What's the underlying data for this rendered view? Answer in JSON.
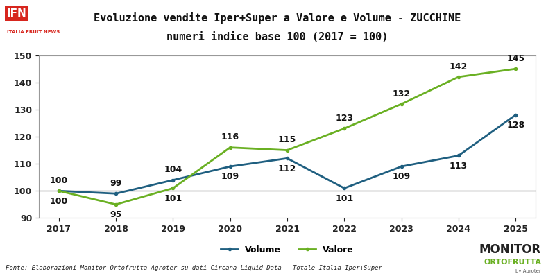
{
  "chart_data": {
    "type": "line",
    "title": "Evoluzione vendite Iper+Super a Valore e Volume - ZUCCHINE",
    "subtitle": "numeri indice base 100 (2017 = 100)",
    "categories": [
      "2017",
      "2018",
      "2019",
      "2020",
      "2021",
      "2022",
      "2023",
      "2024",
      "2025"
    ],
    "series": [
      {
        "name": "Volume",
        "color": "#1f5f80",
        "marker": "circle",
        "line_style": "solid",
        "values": [
          100,
          99,
          104,
          109,
          112,
          101,
          109,
          113,
          128
        ]
      },
      {
        "name": "Valore",
        "color": "#6ab023",
        "marker": "circle",
        "line_style": "solid",
        "values": [
          100,
          95,
          101,
          116,
          115,
          123,
          132,
          142,
          145
        ]
      }
    ],
    "ylim": [
      90,
      150
    ],
    "yticks": [
      90,
      100,
      110,
      120,
      130,
      140,
      150
    ],
    "baseline": 100,
    "grid": false,
    "legend": "lower center",
    "data_labels": true,
    "annotations": {
      "source": "Fonte: Elaborazioni Monitor Ortofrutta Agroter su dati Circana Liquid Data - Totale Italia Iper+Super",
      "logo_left": [
        "IFN",
        "ITALIA FRUIT NEWS"
      ],
      "logo_right": [
        "MONITOR",
        "ORTOFRUTTA",
        "by Agroter"
      ]
    }
  }
}
